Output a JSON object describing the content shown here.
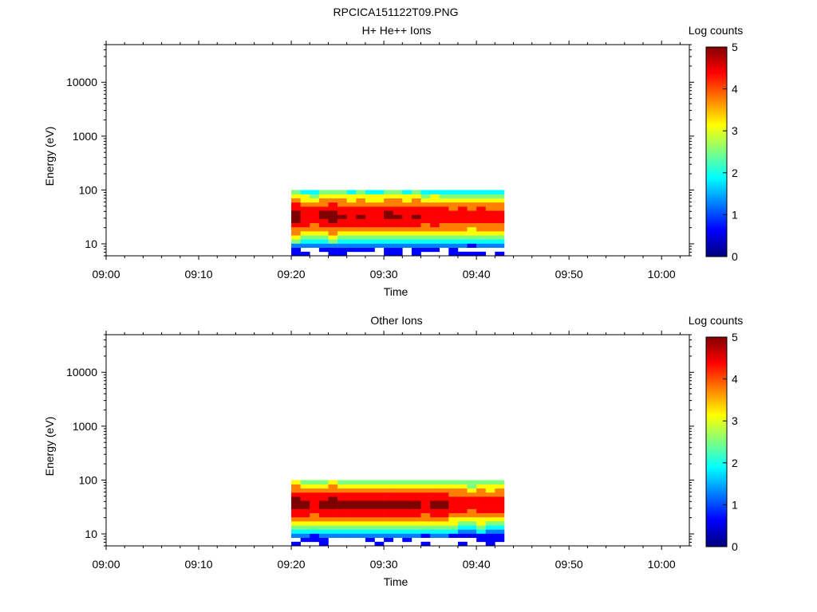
{
  "figure": {
    "title": "RPCICA151122T09.PNG"
  },
  "colormap": [
    "#00007f",
    "#0000ff",
    "#007fff",
    "#00ffff",
    "#7fff7f",
    "#ffff00",
    "#ff7f00",
    "#ff0000",
    "#7f0000"
  ],
  "chart_data": [
    {
      "type": "heatmap",
      "title": "H+ He++ Ions",
      "xlabel": "Time",
      "ylabel": "Energy (eV)",
      "x_range": [
        "09:00",
        "10:03"
      ],
      "y_range": [
        6,
        50000
      ],
      "y_scale": "log",
      "x_ticks": [
        "09:00",
        "09:10",
        "09:20",
        "09:30",
        "09:40",
        "09:50",
        "10:00"
      ],
      "y_ticks": [
        "10",
        "100",
        "1000",
        "10000"
      ],
      "colorbar": {
        "label": "Log counts",
        "range": [
          0,
          5
        ],
        "ticks": [
          "0",
          "1",
          "2",
          "3",
          "4",
          "5"
        ]
      },
      "times": [
        "09:20",
        "09:21",
        "09:22",
        "09:23",
        "09:24",
        "09:25",
        "09:26",
        "09:27",
        "09:28",
        "09:29",
        "09:30",
        "09:31",
        "09:32",
        "09:33",
        "09:34",
        "09:35",
        "09:36",
        "09:37",
        "09:38",
        "09:39",
        "09:40",
        "09:41",
        "09:42"
      ],
      "energy_range_with_counts_eV": [
        6,
        100
      ],
      "peak_energy_eV": 33,
      "peak_log_counts": [
        4.9,
        4.6,
        4.5,
        4.8,
        4.9,
        4.7,
        4.6,
        4.7,
        4.6,
        4.6,
        4.8,
        4.7,
        4.6,
        4.7,
        4.5,
        4.6,
        4.5,
        4.4,
        4.5,
        4.3,
        4.5,
        4.4,
        4.4
      ]
    },
    {
      "type": "heatmap",
      "title": "Other Ions",
      "xlabel": "Time",
      "ylabel": "Energy (eV)",
      "x_range": [
        "09:00",
        "10:03"
      ],
      "y_range": [
        6,
        50000
      ],
      "y_scale": "log",
      "x_ticks": [
        "09:00",
        "09:10",
        "09:20",
        "09:30",
        "09:40",
        "09:50",
        "10:00"
      ],
      "y_ticks": [
        "10",
        "100",
        "1000",
        "10000"
      ],
      "colorbar": {
        "label": "Log counts",
        "range": [
          0,
          5
        ],
        "ticks": [
          "0",
          "1",
          "2",
          "3",
          "4",
          "5"
        ]
      },
      "times": [
        "09:20",
        "09:21",
        "09:22",
        "09:23",
        "09:24",
        "09:25",
        "09:26",
        "09:27",
        "09:28",
        "09:29",
        "09:30",
        "09:31",
        "09:32",
        "09:33",
        "09:34",
        "09:35",
        "09:36",
        "09:37",
        "09:38",
        "09:39",
        "09:40",
        "09:41",
        "09:42"
      ],
      "energy_range_with_counts_eV": [
        6,
        100
      ],
      "peak_energy_eV": 36,
      "peak_log_counts": [
        5.0,
        4.8,
        4.7,
        4.9,
        5.0,
        4.9,
        4.8,
        4.9,
        4.8,
        4.8,
        4.9,
        4.9,
        4.8,
        4.8,
        4.7,
        4.8,
        4.8,
        4.6,
        4.5,
        4.3,
        4.6,
        4.4,
        4.5
      ]
    }
  ]
}
